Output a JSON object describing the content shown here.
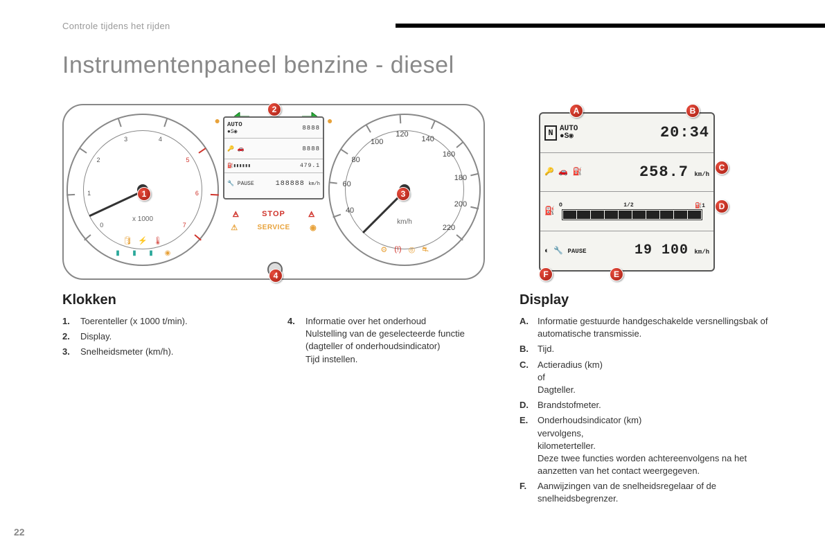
{
  "page": {
    "breadcrumb": "Controle tijdens het rijden",
    "title": "Instrumentenpaneel benzine - diesel",
    "page_number": "22"
  },
  "cluster": {
    "tacho": {
      "labels": [
        "0",
        "1",
        "2",
        "3",
        "4",
        "5",
        "6",
        "7"
      ],
      "unit": "x 1000",
      "redline_start": 5,
      "needle_angle_deg": -115
    },
    "speedo": {
      "labels": [
        "40",
        "60",
        "80",
        "100",
        "120",
        "140",
        "160",
        "180",
        "200",
        "220"
      ],
      "unit": "km/h",
      "needle_angle_deg": -135
    },
    "lcd": {
      "row1_left": "AUTO",
      "row1_left2": "S",
      "row1_right": "8888",
      "row2_right": "8888",
      "row3_right": "479.1",
      "row4_left": "PAUSE",
      "row4_right": "188888",
      "row4_unit": "km/h"
    },
    "warnings": {
      "stop_label": "STOP",
      "service_label": "SERVICE"
    },
    "callouts": {
      "c1": "1",
      "c2": "2",
      "c3": "3",
      "c4": "4"
    },
    "colors": {
      "callout_bg": "#d0342c",
      "green_arrow": "#2bae3a",
      "amber": "#e8a23a",
      "red": "#d0342c",
      "blue": "#1f8fd6",
      "teal": "#2aa89a"
    }
  },
  "display_fig": {
    "row1_left": "AUTO",
    "row1_left2": "S",
    "row1_right": "20:34",
    "row2_val": "258.7",
    "row2_unit": "km/h",
    "row3_o": "O",
    "row3_half": "1/2",
    "row3_one": "1",
    "row4_left": "PAUSE",
    "row4_val": "19 100",
    "row4_unit": "km/h",
    "callouts": {
      "A": "A",
      "B": "B",
      "C": "C",
      "D": "D",
      "E": "E",
      "F": "F"
    },
    "fuel_segments": 10
  },
  "klokken": {
    "heading": "Klokken",
    "items_left": [
      {
        "k": "1.",
        "v": "Toerenteller (x 1000 t/min)."
      },
      {
        "k": "2.",
        "v": "Display."
      },
      {
        "k": "3.",
        "v": "Snelheidsmeter (km/h)."
      }
    ],
    "items_right": [
      {
        "k": "4.",
        "v": "Informatie over het onderhoud\nNulstelling van de geselecteerde functie (dagteller of onderhoudsindicator)\nTijd instellen."
      }
    ]
  },
  "display": {
    "heading": "Display",
    "items": [
      {
        "k": "A.",
        "v": "Informatie gestuurde handgeschakelde versnellingsbak of automatische transmissie."
      },
      {
        "k": "B.",
        "v": "Tijd."
      },
      {
        "k": "C.",
        "v": "Actieradius (km)\nof\nDagteller."
      },
      {
        "k": "D.",
        "v": "Brandstofmeter."
      },
      {
        "k": "E.",
        "v": "Onderhoudsindicator (km)\nvervolgens,\nkilometerteller.\nDeze twee functies worden achtereenvolgens na het aanzetten van het contact weergegeven."
      },
      {
        "k": "F.",
        "v": "Aanwijzingen van de snelheidsregelaar of de snelheidsbegrenzer."
      }
    ]
  }
}
